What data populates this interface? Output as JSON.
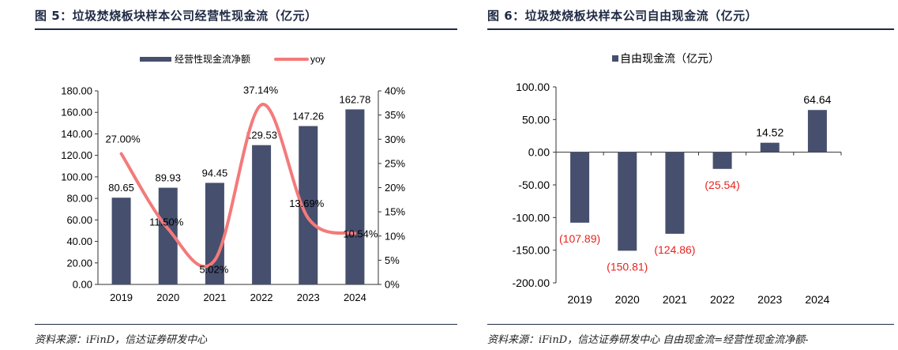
{
  "left": {
    "title": "图 5：垃圾焚烧板块样本公司经营性现金流（亿元）",
    "source": "资料来源：iFinD，信达证券研发中心"
  },
  "right": {
    "title": "图 6：垃圾焚烧板块样本公司自由现金流（亿元）",
    "source": "资料来源：iFinD，信达证券研发中心   自由现金流=经营性现金流净额-"
  },
  "colors": {
    "bar": "#474f6e",
    "line": "#f47a7a",
    "negative_label": "#e8231f",
    "title": "#1f2a44"
  },
  "chart_data": [
    {
      "type": "bar",
      "categories": [
        "2019",
        "2020",
        "2021",
        "2022",
        "2023",
        "2024"
      ],
      "series": [
        {
          "name": "经营性现金流净额",
          "values": [
            80.65,
            89.93,
            94.45,
            129.53,
            147.26,
            162.78
          ],
          "axis": "left"
        },
        {
          "name": "yoy",
          "type": "line",
          "values": [
            27.0,
            11.5,
            5.02,
            37.14,
            13.69,
            10.54
          ],
          "axis": "right",
          "unit": "%"
        }
      ],
      "data_labels": {
        "bars": [
          "80.65",
          "89.93",
          "94.45",
          "129.53",
          "147.26",
          "162.78"
        ],
        "line": [
          "27.00%",
          "11.50%",
          "5.02%",
          "37.14%",
          "13.69%",
          "10.54%"
        ]
      },
      "ylim": [
        0,
        180
      ],
      "yticks": [
        "0.00",
        "20.00",
        "40.00",
        "60.00",
        "80.00",
        "100.00",
        "120.00",
        "140.00",
        "160.00",
        "180.00"
      ],
      "y2lim": [
        0,
        40
      ],
      "y2ticks": [
        "0%",
        "5%",
        "10%",
        "15%",
        "20%",
        "25%",
        "30%",
        "35%",
        "40%"
      ],
      "legend": "top",
      "grid": false
    },
    {
      "type": "bar",
      "categories": [
        "2019",
        "2020",
        "2021",
        "2022",
        "2023",
        "2024"
      ],
      "series": [
        {
          "name": "自由现金流（亿元）",
          "values": [
            -107.89,
            -150.81,
            -124.86,
            -25.54,
            14.52,
            64.64
          ]
        }
      ],
      "data_labels": [
        "(107.89)",
        "(150.81)",
        "(124.86)",
        "(25.54)",
        "14.52",
        "64.64"
      ],
      "ylim": [
        -200,
        100
      ],
      "yticks": [
        "100.00",
        "50.00",
        "0.00",
        "-50.00",
        "-100.00",
        "-150.00",
        "-200.00"
      ],
      "legend": "top",
      "grid": false
    }
  ]
}
